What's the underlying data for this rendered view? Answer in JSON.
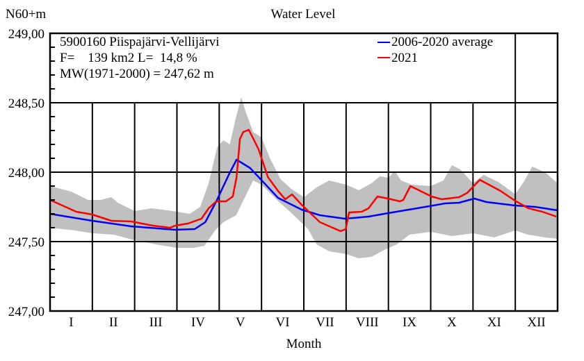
{
  "chart_data": {
    "type": "line",
    "title": "Water Level",
    "ylabel": "N60+m",
    "xlabel": "Month",
    "ylim": [
      247.0,
      249.0
    ],
    "xlim": [
      0,
      12
    ],
    "y_ticks": [
      247.0,
      247.5,
      248.0,
      248.5,
      249.0
    ],
    "y_tick_labels": [
      "247,00",
      "247,50",
      "248,00",
      "248,50",
      "249,00"
    ],
    "y_minor_step": 0.1,
    "x_categories": [
      "I",
      "II",
      "III",
      "IV",
      "V",
      "VI",
      "VII",
      "VIII",
      "IX",
      "X",
      "XI",
      "XII"
    ],
    "month_boundaries": [
      0,
      1,
      2,
      3,
      4,
      5,
      6,
      7,
      8,
      9,
      10,
      11,
      12
    ],
    "grid": true,
    "legend_position": "top-right",
    "info_lines": [
      "5900160 Piispajärvi-Vellijärvi",
      "F=    139 km2 L=  14,8 %",
      "MW(1971-2000) = 247,62 m"
    ],
    "series": [
      {
        "name": "2006-2020 average",
        "color": "#0000ff",
        "points": [
          [
            0.0,
            247.7
          ],
          [
            1.0,
            247.65
          ],
          [
            1.92,
            247.61
          ],
          [
            2.96,
            247.585
          ],
          [
            3.42,
            247.59
          ],
          [
            3.67,
            247.64
          ],
          [
            3.93,
            247.79
          ],
          [
            4.24,
            247.99
          ],
          [
            4.41,
            248.09
          ],
          [
            4.73,
            248.03
          ],
          [
            4.93,
            247.965
          ],
          [
            5.39,
            247.815
          ],
          [
            5.95,
            247.73
          ],
          [
            6.38,
            247.69
          ],
          [
            6.97,
            247.665
          ],
          [
            7.53,
            247.68
          ],
          [
            7.99,
            247.705
          ],
          [
            8.68,
            247.74
          ],
          [
            9.34,
            247.775
          ],
          [
            9.67,
            247.78
          ],
          [
            10.03,
            247.81
          ],
          [
            10.32,
            247.785
          ],
          [
            10.99,
            247.76
          ],
          [
            11.47,
            247.75
          ],
          [
            12.0,
            247.725
          ]
        ]
      },
      {
        "name": "2021",
        "color": "#ff0000",
        "points": [
          [
            0.0,
            247.8
          ],
          [
            0.62,
            247.715
          ],
          [
            1.0,
            247.695
          ],
          [
            1.45,
            247.65
          ],
          [
            1.92,
            247.645
          ],
          [
            2.43,
            247.615
          ],
          [
            2.84,
            247.6
          ],
          [
            2.96,
            247.615
          ],
          [
            3.26,
            247.63
          ],
          [
            3.58,
            247.665
          ],
          [
            3.75,
            247.74
          ],
          [
            3.93,
            247.79
          ],
          [
            4.16,
            247.79
          ],
          [
            4.32,
            247.825
          ],
          [
            4.41,
            247.965
          ],
          [
            4.49,
            248.24
          ],
          [
            4.57,
            248.29
          ],
          [
            4.7,
            248.305
          ],
          [
            4.93,
            248.165
          ],
          [
            5.15,
            247.965
          ],
          [
            5.39,
            247.865
          ],
          [
            5.56,
            247.805
          ],
          [
            5.72,
            247.84
          ],
          [
            5.95,
            247.765
          ],
          [
            6.38,
            247.64
          ],
          [
            6.87,
            247.575
          ],
          [
            6.99,
            247.59
          ],
          [
            7.07,
            247.71
          ],
          [
            7.37,
            247.715
          ],
          [
            7.53,
            247.74
          ],
          [
            7.74,
            247.825
          ],
          [
            7.99,
            247.81
          ],
          [
            8.27,
            247.79
          ],
          [
            8.35,
            247.8
          ],
          [
            8.52,
            247.9
          ],
          [
            9.02,
            247.825
          ],
          [
            9.26,
            247.805
          ],
          [
            9.67,
            247.82
          ],
          [
            9.86,
            247.85
          ],
          [
            10.16,
            247.945
          ],
          [
            10.65,
            247.865
          ],
          [
            10.99,
            247.795
          ],
          [
            11.31,
            247.74
          ],
          [
            11.64,
            247.715
          ],
          [
            11.97,
            247.68
          ]
        ]
      }
    ],
    "envelope": {
      "name": "range",
      "color": "#c0c0c0",
      "upper": [
        [
          0.0,
          247.9
        ],
        [
          0.5,
          247.86
        ],
        [
          0.9,
          247.8
        ],
        [
          1.2,
          247.8
        ],
        [
          1.45,
          247.82
        ],
        [
          1.6,
          247.78
        ],
        [
          2.0,
          247.72
        ],
        [
          2.4,
          247.74
        ],
        [
          2.9,
          247.72
        ],
        [
          3.3,
          247.7
        ],
        [
          3.55,
          247.75
        ],
        [
          3.75,
          247.92
        ],
        [
          3.95,
          248.18
        ],
        [
          4.1,
          248.23
        ],
        [
          4.25,
          248.2
        ],
        [
          4.4,
          248.4
        ],
        [
          4.52,
          248.54
        ],
        [
          4.62,
          248.44
        ],
        [
          4.8,
          248.29
        ],
        [
          5.0,
          248.25
        ],
        [
          5.2,
          248.1
        ],
        [
          5.45,
          247.95
        ],
        [
          5.7,
          247.88
        ],
        [
          6.0,
          247.82
        ],
        [
          6.3,
          247.89
        ],
        [
          6.6,
          247.94
        ],
        [
          7.0,
          247.91
        ],
        [
          7.3,
          247.87
        ],
        [
          7.6,
          247.92
        ],
        [
          7.8,
          247.97
        ],
        [
          8.0,
          247.96
        ],
        [
          8.15,
          248.01
        ],
        [
          8.3,
          247.94
        ],
        [
          8.55,
          247.91
        ],
        [
          9.0,
          247.9
        ],
        [
          9.3,
          247.94
        ],
        [
          9.5,
          248.05
        ],
        [
          9.7,
          248.02
        ],
        [
          10.0,
          247.92
        ],
        [
          10.25,
          247.98
        ],
        [
          10.6,
          247.93
        ],
        [
          11.0,
          247.84
        ],
        [
          11.2,
          247.93
        ],
        [
          11.4,
          248.04
        ],
        [
          11.7,
          248.0
        ],
        [
          12.0,
          247.92
        ]
      ],
      "lower": [
        [
          0.0,
          247.6
        ],
        [
          0.6,
          247.58
        ],
        [
          1.0,
          247.56
        ],
        [
          1.5,
          247.55
        ],
        [
          2.0,
          247.51
        ],
        [
          2.5,
          247.48
        ],
        [
          3.0,
          247.455
        ],
        [
          3.4,
          247.455
        ],
        [
          3.65,
          247.47
        ],
        [
          3.9,
          247.58
        ],
        [
          4.1,
          247.64
        ],
        [
          4.4,
          247.69
        ],
        [
          4.8,
          247.94
        ],
        [
          5.0,
          247.91
        ],
        [
          5.4,
          247.79
        ],
        [
          5.8,
          247.68
        ],
        [
          6.1,
          247.59
        ],
        [
          6.3,
          247.48
        ],
        [
          6.6,
          247.43
        ],
        [
          7.0,
          247.41
        ],
        [
          7.3,
          247.38
        ],
        [
          7.6,
          247.39
        ],
        [
          7.9,
          247.44
        ],
        [
          8.2,
          247.48
        ],
        [
          8.5,
          247.55
        ],
        [
          9.0,
          247.57
        ],
        [
          9.5,
          247.54
        ],
        [
          10.0,
          247.56
        ],
        [
          10.5,
          247.53
        ],
        [
          11.0,
          247.58
        ],
        [
          11.3,
          247.55
        ],
        [
          11.7,
          247.53
        ],
        [
          12.0,
          247.52
        ]
      ]
    }
  }
}
